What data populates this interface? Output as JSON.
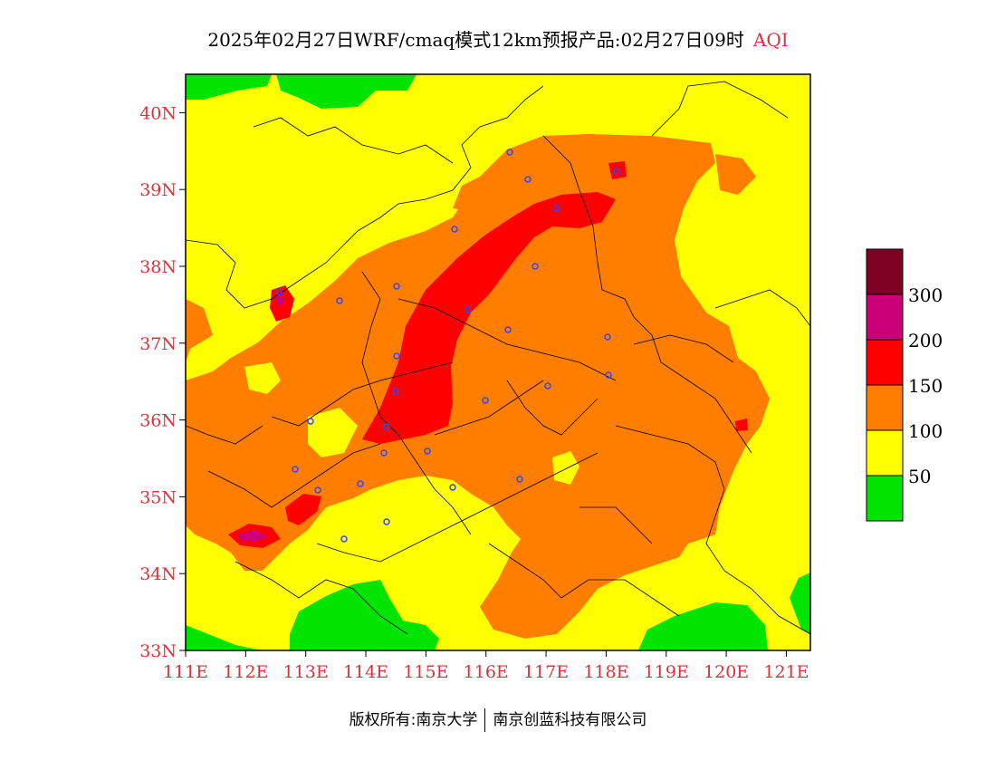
{
  "title": {
    "main": "2025年02月27日WRF/cmaq模式12km预报产品:02月27日09时",
    "variable": "AQI"
  },
  "map": {
    "lon_range": [
      111,
      121.4
    ],
    "lat_range": [
      33,
      40.5
    ],
    "lon_ticks": [
      "111E",
      "112E",
      "113E",
      "114E",
      "115E",
      "116E",
      "117E",
      "118E",
      "119E",
      "120E",
      "121E"
    ],
    "lat_ticks": [
      "33N",
      "34N",
      "35N",
      "36N",
      "37N",
      "38N",
      "39N",
      "40N"
    ]
  },
  "legend": {
    "labels": [
      "50",
      "100",
      "150",
      "200",
      "300"
    ],
    "colors": [
      "#00e400",
      "#ffff00",
      "#ff7e00",
      "#ff0000",
      "#cc0077",
      "#7e0023"
    ]
  },
  "copyright": {
    "left": "版权所有:南京大学",
    "right": "南京创蓝科技有限公司"
  }
}
